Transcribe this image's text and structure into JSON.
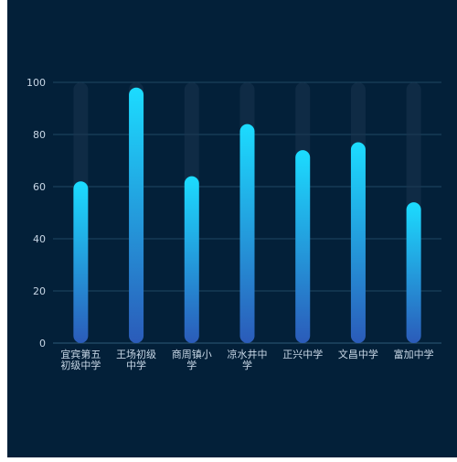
{
  "colors": {
    "background": "#032039",
    "axis_line": "#2E5A78",
    "grid_line": "#1F4763",
    "tick_text": "#C8D7E6",
    "bar_top": "#1CDCFF",
    "bar_bottom": "#2B5BB9",
    "track": "#1A3550"
  },
  "chart_data": {
    "type": "bar",
    "title": "",
    "xlabel": "",
    "ylabel": "",
    "ylim": [
      0,
      100
    ],
    "yticks": [
      "0",
      "20",
      "40",
      "60",
      "80",
      "100"
    ],
    "categories": [
      [
        "宜宾第五",
        "初级中学"
      ],
      [
        "王场初级",
        "中学"
      ],
      [
        "商周镇小",
        "学"
      ],
      [
        "凉水井中",
        "学"
      ],
      [
        "正兴中学"
      ],
      [
        "文昌中学"
      ],
      [
        "富加中学"
      ]
    ],
    "values": [
      62,
      98,
      64,
      84,
      74,
      77,
      54
    ],
    "track_max": 100,
    "grid": true
  }
}
